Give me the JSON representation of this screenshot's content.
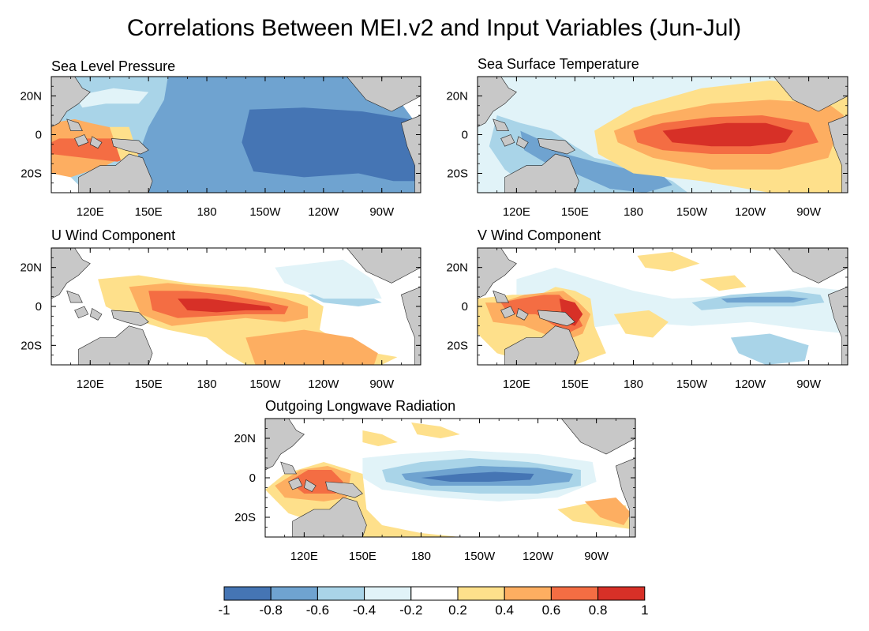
{
  "title": "Correlations Between MEI.v2 and Input Variables (Jun-Jul)",
  "lon_ticks": [
    "120E",
    "150E",
    "180",
    "150W",
    "120W",
    "90W"
  ],
  "lat_ticks": [
    "20N",
    "0",
    "20S"
  ],
  "panels": [
    {
      "id": "slp",
      "title": "Sea Level Pressure"
    },
    {
      "id": "sst",
      "title": "Sea Surface Temperature"
    },
    {
      "id": "u",
      "title": "U Wind Component"
    },
    {
      "id": "v",
      "title": "V Wind Component"
    },
    {
      "id": "olr",
      "title": "Outgoing Longwave Radiation"
    }
  ],
  "colorbar": {
    "colors": [
      "#4575b4",
      "#6fa3d0",
      "#a9d4e8",
      "#e1f3f8",
      "#ffffff",
      "#fee08b",
      "#fdae61",
      "#f46d43",
      "#d73027"
    ],
    "labels": [
      "-1",
      "-0.8",
      "-0.6",
      "-0.4",
      "-0.2",
      "0.2",
      "0.4",
      "0.6",
      "0.8",
      "1"
    ]
  },
  "land_color": "#c8c8c8"
}
